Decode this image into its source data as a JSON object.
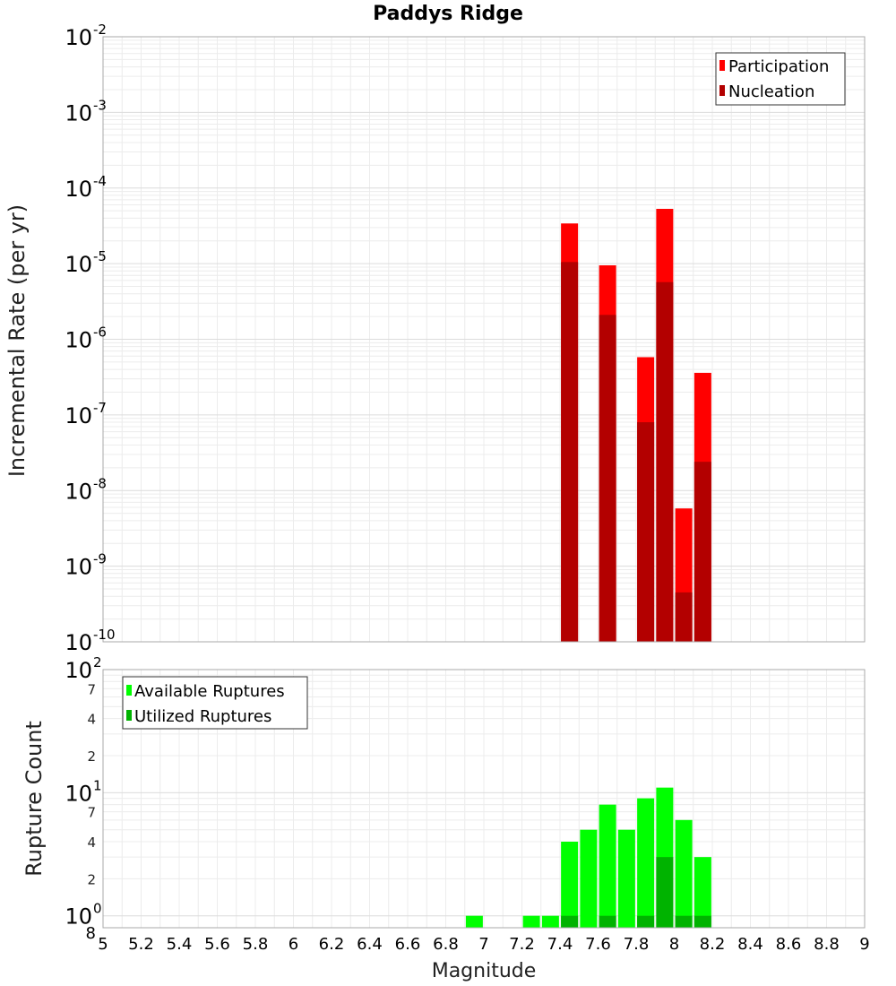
{
  "chart_data": [
    {
      "type": "bar",
      "title": "Paddys Ridge",
      "ylabel": "Incremental Rate (per yr)",
      "xlabel": "",
      "xlim": [
        5,
        9
      ],
      "ylim": [
        1e-10,
        0.01
      ],
      "yscale": "log",
      "grid": true,
      "legend_position": "top-right",
      "y_tick_exponents": [
        "-10",
        "-9",
        "-8",
        "-7",
        "-6",
        "-5",
        "-4",
        "-3",
        "-2"
      ],
      "y_tick_base": "10",
      "series": [
        {
          "name": "Participation",
          "color": "#ff0000",
          "x": [
            7.45,
            7.65,
            7.85,
            7.95,
            8.05,
            8.15
          ],
          "values": [
            3.4e-05,
            9.5e-06,
            5.8e-07,
            5.3e-05,
            5.8e-09,
            3.6e-07
          ]
        },
        {
          "name": "Nucleation",
          "color": "#b30000",
          "x": [
            7.45,
            7.65,
            7.85,
            7.95,
            8.05,
            8.15
          ],
          "values": [
            1.05e-05,
            2.1e-06,
            8e-08,
            5.7e-06,
            4.5e-10,
            2.4e-08
          ]
        }
      ]
    },
    {
      "type": "bar",
      "ylabel": "Rupture Count",
      "xlabel": "Magnitude",
      "xlim": [
        5,
        9
      ],
      "ylim": [
        0.8,
        100
      ],
      "yscale": "log",
      "grid": true,
      "legend_position": "top-left",
      "y_major_ticks": [
        {
          "value": 1,
          "base": "10",
          "exp": "0"
        },
        {
          "value": 10,
          "base": "10",
          "exp": "1"
        },
        {
          "value": 100,
          "base": "10",
          "exp": "2"
        }
      ],
      "y_minor_ticks": [
        {
          "value": 0.8,
          "label": "8"
        },
        {
          "value": 2,
          "label": "2"
        },
        {
          "value": 4,
          "label": "4"
        },
        {
          "value": 7,
          "label": "7"
        },
        {
          "value": 20,
          "label": "2"
        },
        {
          "value": 40,
          "label": "4"
        },
        {
          "value": 70,
          "label": "7"
        }
      ],
      "x_ticks": [
        "5",
        "5.2",
        "5.4",
        "5.6",
        "5.8",
        "6",
        "6.2",
        "6.4",
        "6.6",
        "6.8",
        "7",
        "7.2",
        "7.4",
        "7.6",
        "7.8",
        "8",
        "8.2",
        "8.4",
        "8.6",
        "8.8",
        "9"
      ],
      "series": [
        {
          "name": "Available Ruptures",
          "color": "#00ff00",
          "x": [
            6.95,
            7.25,
            7.35,
            7.45,
            7.55,
            7.65,
            7.75,
            7.85,
            7.95,
            8.05,
            8.15
          ],
          "values": [
            1,
            1,
            1,
            4,
            5,
            8,
            5,
            9,
            11,
            6,
            3
          ]
        },
        {
          "name": "Utilized Ruptures",
          "color": "#00b300",
          "x": [
            7.45,
            7.65,
            7.85,
            7.95,
            8.05,
            8.15
          ],
          "values": [
            1,
            1,
            1,
            3,
            1,
            1
          ]
        }
      ]
    }
  ]
}
